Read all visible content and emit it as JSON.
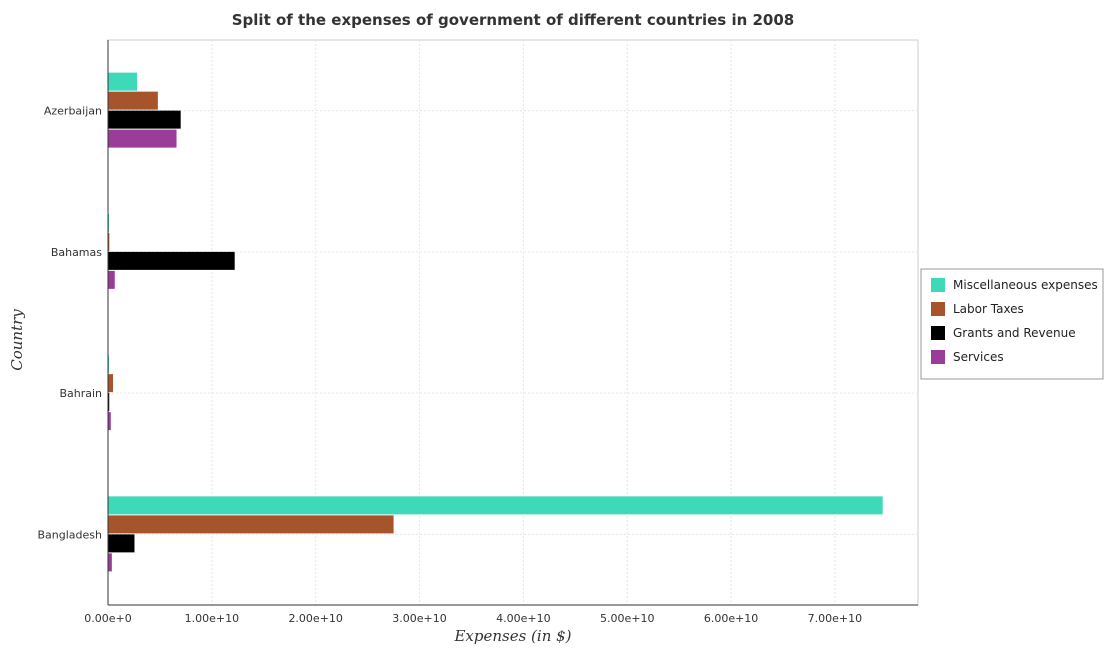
{
  "chart_data": {
    "type": "bar",
    "orientation": "horizontal",
    "title": "Split of the expenses of government of different countries in 2008",
    "xlabel": "Expenses (in $)",
    "ylabel": "Country",
    "categories": [
      "Azerbaijan",
      "Bahamas",
      "Bahrain",
      "Bangladesh"
    ],
    "series": [
      {
        "name": "Miscellaneous expenses",
        "color": "#3dd9b8",
        "values": [
          2800000000.0,
          40000000.0,
          10000000.0,
          74600000000.0
        ]
      },
      {
        "name": "Labor Taxes",
        "color": "#a6542b",
        "values": [
          4800000000.0,
          130000000.0,
          480000000.0,
          27500000000.0
        ]
      },
      {
        "name": "Grants and Revenue",
        "color": "#000000",
        "values": [
          7000000000.0,
          12200000000.0,
          120000000.0,
          2550000000.0
        ]
      },
      {
        "name": "Services",
        "color": "#993d99",
        "values": [
          6600000000.0,
          650000000.0,
          270000000.0,
          370000000.0
        ]
      }
    ],
    "xlim": [
      0,
      78000000000.0
    ],
    "xticks": [
      0,
      10000000000.0,
      20000000000.0,
      30000000000.0,
      40000000000.0,
      50000000000.0,
      60000000000.0,
      70000000000.0
    ],
    "xtick_labels": [
      "0.00e+0",
      "1.00e+10",
      "2.00e+10",
      "3.00e+10",
      "4.00e+10",
      "5.00e+10",
      "6.00e+10",
      "7.00e+10"
    ],
    "grid": true,
    "legend_position": "right"
  }
}
